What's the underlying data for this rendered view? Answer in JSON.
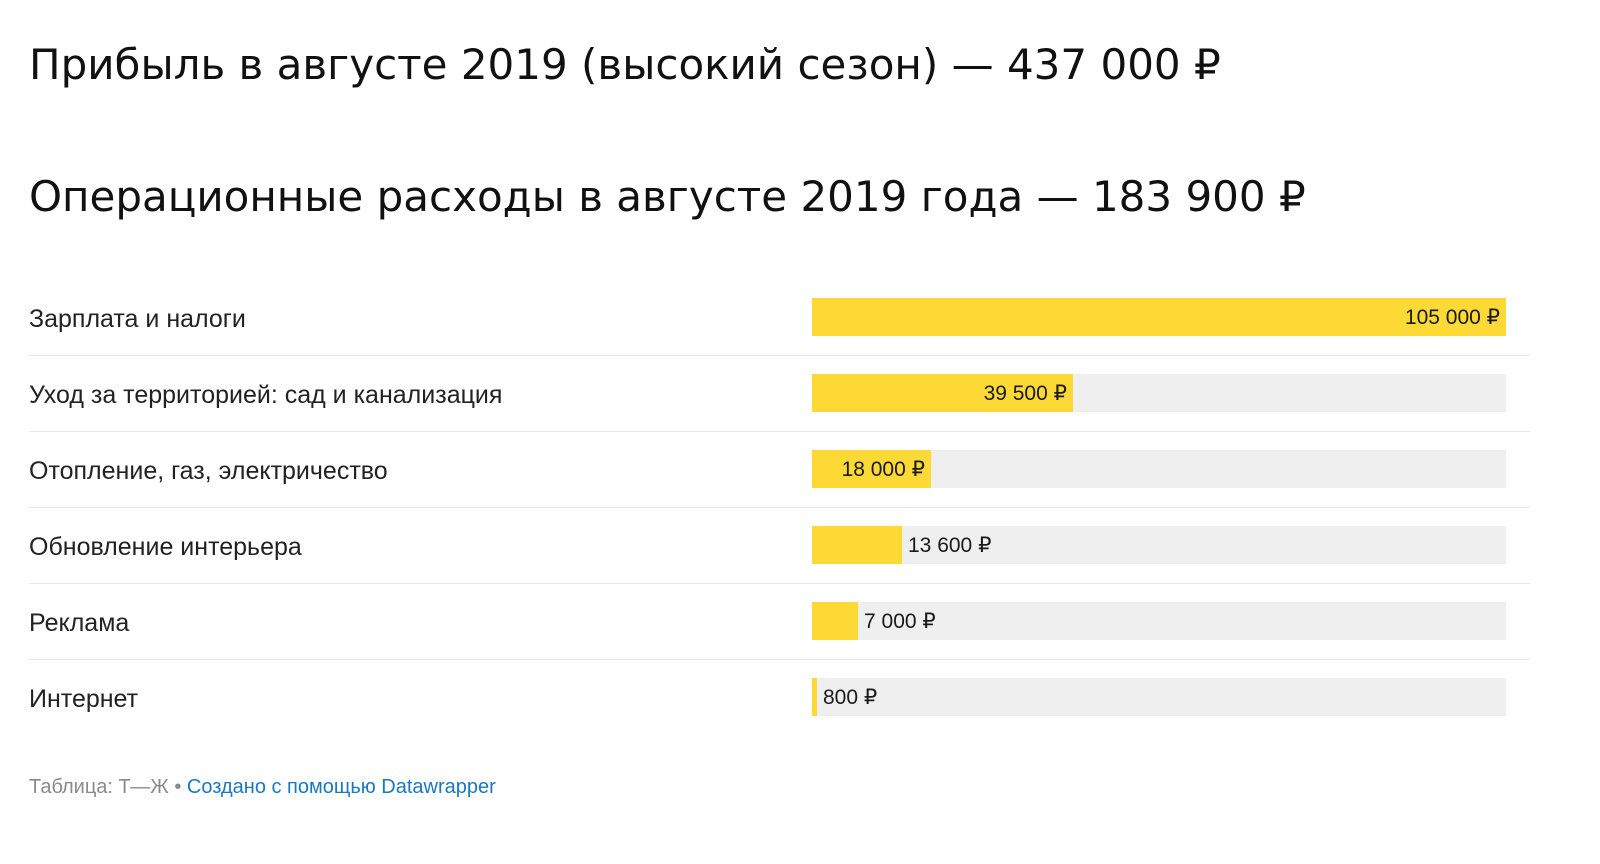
{
  "headline_profit": "Прибыль в августе 2019 (высокий сезон) — 437 000 ₽",
  "headline_costs": "Операционные расходы в августе 2019 года — 183 900 ₽",
  "colors": {
    "bar": "#fcd934",
    "track": "#efefef",
    "link": "#1a78c2"
  },
  "chart_data": {
    "type": "bar",
    "orientation": "horizontal",
    "title": "Операционные расходы в августе 2019 года — 183 900 ₽",
    "unit": "₽",
    "xlim": [
      0,
      105000
    ],
    "categories": [
      "Зарплата и налоги",
      "Уход за территорией: сад и канализация",
      "Отопление, газ, электричество",
      "Обновление интерьера",
      "Реклама",
      "Интернет"
    ],
    "values": [
      105000,
      39500,
      18000,
      13600,
      7000,
      800
    ],
    "value_labels": [
      "105 000 ₽",
      "39 500 ₽",
      "18 000 ₽",
      "13 600 ₽",
      "7 000 ₽",
      "800 ₽"
    ]
  },
  "footer": {
    "source": "Таблица: Т—Ж",
    "separator": " • ",
    "credit": "Создано с помощью Datawrapper"
  }
}
